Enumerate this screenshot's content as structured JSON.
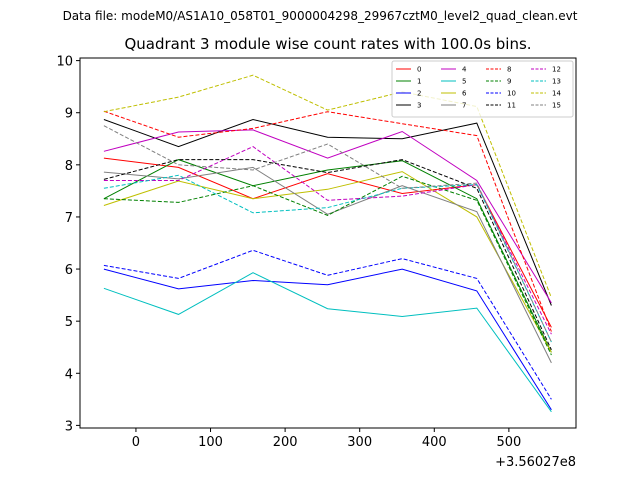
{
  "chart_data": {
    "type": "line",
    "suptitle": "Data file: modeM0/AS1A10_058T01_9000004298_29967cztM0_level2_quad_clean.evt",
    "title": "Quadrant 3 module wise count rates with 100.0s bins.",
    "xlabel": "",
    "ylabel": "",
    "x_offset_label": "+3.56027e8",
    "xlim": [
      -75,
      590
    ],
    "ylim": [
      2.95,
      10.05
    ],
    "x": [
      -43,
      57,
      157,
      257,
      357,
      457,
      557
    ],
    "x_ticks": [
      0,
      100,
      200,
      300,
      400,
      500
    ],
    "x_tick_labels": [
      "0",
      "100",
      "200",
      "300",
      "400",
      "500"
    ],
    "y_ticks": [
      3,
      4,
      5,
      6,
      7,
      8,
      9,
      10
    ],
    "y_tick_labels": [
      "3",
      "4",
      "5",
      "6",
      "7",
      "8",
      "9",
      "10"
    ],
    "grid": false,
    "legend_position": "top-right",
    "series": [
      {
        "name": "0",
        "color": "#ff0000",
        "dashed": false,
        "values": [
          8.13,
          7.95,
          7.35,
          7.83,
          7.45,
          7.62,
          4.88
        ]
      },
      {
        "name": "1",
        "color": "#008000",
        "dashed": false,
        "values": [
          7.35,
          8.1,
          7.6,
          7.9,
          8.08,
          7.35,
          4.4
        ]
      },
      {
        "name": "2",
        "color": "#0000ff",
        "dashed": false,
        "values": [
          6.0,
          5.62,
          5.78,
          5.7,
          6.0,
          5.58,
          3.3
        ]
      },
      {
        "name": "3",
        "color": "#000000",
        "dashed": false,
        "values": [
          8.87,
          8.35,
          8.87,
          8.53,
          8.5,
          8.8,
          5.3
        ]
      },
      {
        "name": "4",
        "color": "#c000c0",
        "dashed": false,
        "values": [
          8.26,
          8.63,
          8.67,
          8.13,
          8.64,
          7.7,
          5.35
        ]
      },
      {
        "name": "5",
        "color": "#00bfbf",
        "dashed": false,
        "values": [
          5.63,
          5.13,
          5.93,
          5.24,
          5.09,
          5.25,
          3.26
        ]
      },
      {
        "name": "6",
        "color": "#bfbf00",
        "dashed": false,
        "values": [
          7.22,
          7.69,
          7.35,
          7.53,
          7.87,
          7.0,
          4.4
        ]
      },
      {
        "name": "7",
        "color": "#808080",
        "dashed": false,
        "values": [
          7.86,
          7.73,
          7.95,
          7.05,
          7.6,
          7.1,
          4.2
        ]
      },
      {
        "name": "8",
        "color": "#ff0000",
        "dashed": true,
        "values": [
          9.03,
          8.53,
          8.7,
          9.02,
          8.79,
          8.56,
          4.8
        ]
      },
      {
        "name": "9",
        "color": "#008000",
        "dashed": true,
        "values": [
          7.35,
          7.28,
          7.6,
          7.03,
          7.78,
          7.32,
          4.35
        ]
      },
      {
        "name": "10",
        "color": "#0000ff",
        "dashed": true,
        "values": [
          6.07,
          5.82,
          6.36,
          5.88,
          6.2,
          5.82,
          3.5
        ]
      },
      {
        "name": "11",
        "color": "#000000",
        "dashed": true,
        "values": [
          7.72,
          8.1,
          8.1,
          7.85,
          8.1,
          7.55,
          4.45
        ]
      },
      {
        "name": "12",
        "color": "#c000c0",
        "dashed": true,
        "values": [
          7.7,
          7.7,
          8.35,
          7.32,
          7.4,
          7.62,
          4.75
        ]
      },
      {
        "name": "13",
        "color": "#00bfbf",
        "dashed": true,
        "values": [
          7.55,
          7.8,
          7.08,
          7.18,
          7.55,
          7.62,
          4.6
        ]
      },
      {
        "name": "14",
        "color": "#bfbf00",
        "dashed": true,
        "values": [
          9.02,
          9.3,
          9.72,
          9.05,
          9.4,
          9.12,
          5.45
        ]
      },
      {
        "name": "15",
        "color": "#808080",
        "dashed": true,
        "values": [
          8.75,
          8.0,
          7.9,
          8.4,
          7.55,
          7.65,
          4.6
        ]
      }
    ]
  }
}
